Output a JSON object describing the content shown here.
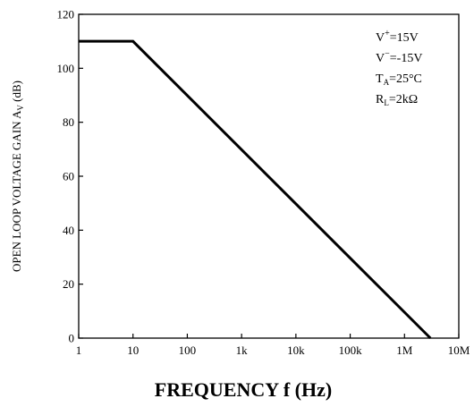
{
  "chart_data": {
    "type": "line",
    "x_scale": "log",
    "xlim": [
      1,
      10000000
    ],
    "ylim": [
      0,
      120
    ],
    "x_ticks": [
      {
        "value": 1,
        "label": "1"
      },
      {
        "value": 10,
        "label": "10"
      },
      {
        "value": 100,
        "label": "100"
      },
      {
        "value": 1000,
        "label": "1k"
      },
      {
        "value": 10000,
        "label": "10k"
      },
      {
        "value": 100000,
        "label": "100k"
      },
      {
        "value": 1000000,
        "label": "1M"
      },
      {
        "value": 10000000,
        "label": "10M"
      }
    ],
    "y_ticks": [
      {
        "value": 0,
        "label": "0"
      },
      {
        "value": 20,
        "label": "20"
      },
      {
        "value": 40,
        "label": "40"
      },
      {
        "value": 60,
        "label": "60"
      },
      {
        "value": 80,
        "label": "80"
      },
      {
        "value": 100,
        "label": "100"
      },
      {
        "value": 120,
        "label": "120"
      }
    ],
    "series": [
      {
        "color": "#000000",
        "points": [
          {
            "x": 1,
            "y": 110
          },
          {
            "x": 10,
            "y": 110
          },
          {
            "x": 3000000,
            "y": 0
          }
        ]
      }
    ],
    "xlabel": "FREQUENCY f (Hz)",
    "ylabel": {
      "main": "OPEN LOOP VOLTAGE GAIN A",
      "sub": "V",
      "unit": " (dB)"
    },
    "annotations": [
      {
        "main": "V",
        "sup": "+",
        "rest": "=15V"
      },
      {
        "main": "V",
        "sup": "−",
        "rest": "=-15V"
      },
      {
        "main": "T",
        "sub": "A",
        "rest": "=25°C"
      },
      {
        "main": "R",
        "sub": "L",
        "rest": "=2kΩ"
      }
    ],
    "grid": false,
    "legend": "none"
  }
}
